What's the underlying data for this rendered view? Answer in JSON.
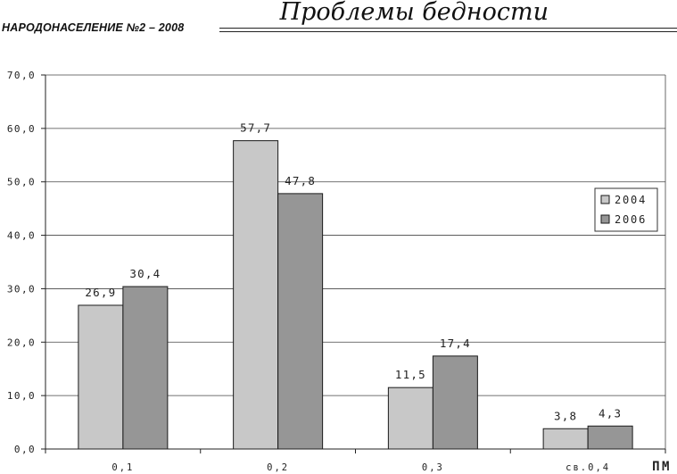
{
  "header": {
    "journal": "НАРОДОНАСЕЛЕНИЕ №2 – 2008",
    "section": "Проблемы бедности"
  },
  "chart_data": {
    "type": "bar",
    "categories": [
      "0,1",
      "0,2",
      "0,3",
      "св.0,4"
    ],
    "series": [
      {
        "name": "2004",
        "values": [
          26.9,
          57.7,
          11.5,
          3.8
        ],
        "color": "#c8c8c8"
      },
      {
        "name": "2006",
        "values": [
          30.4,
          47.8,
          17.4,
          4.3
        ],
        "color": "#969696"
      }
    ],
    "value_labels": [
      [
        "26,9",
        "57,7",
        "11,5",
        "3,8"
      ],
      [
        "30,4",
        "47,8",
        "17,4",
        "4,3"
      ]
    ],
    "yticks": [
      "0,0",
      "10,0",
      "20,0",
      "30,0",
      "40,0",
      "50,0",
      "60,0",
      "70,0"
    ],
    "ylim": [
      0,
      70
    ],
    "xlabel": "ПМ",
    "ylabel": "",
    "grid": true,
    "legend_position": "right"
  }
}
